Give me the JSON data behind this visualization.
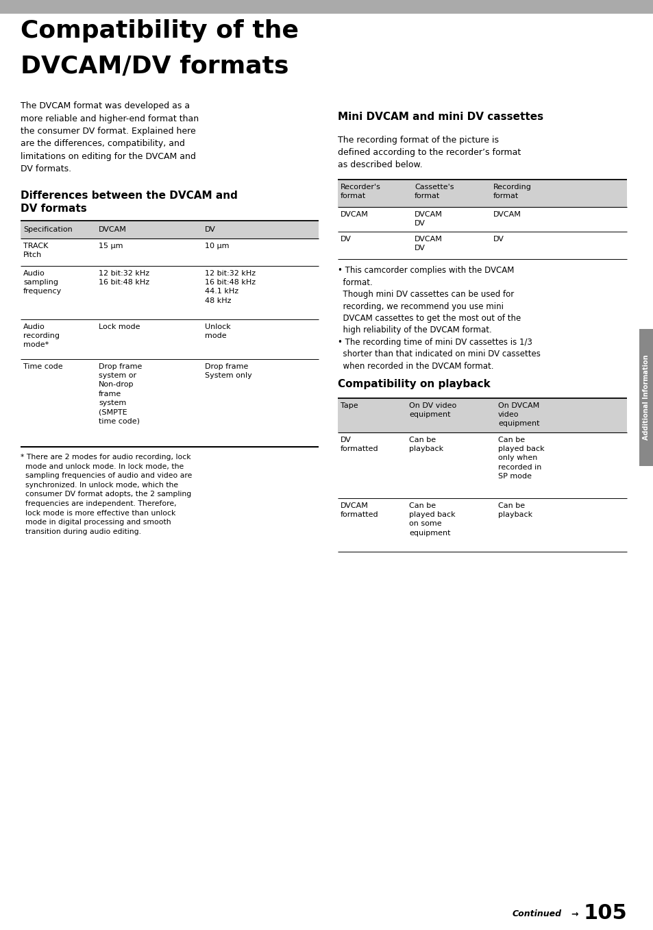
{
  "page_bg": "#ffffff",
  "header_bar_color": "#aaaaaa",
  "title_line1": "Compatibility of the",
  "title_line2": "DVCAM/DV formats",
  "intro_text": "The DVCAM format was developed as a\nmore reliable and higher-end format than\nthe consumer DV format. Explained here\nare the differences, compatibility, and\nlimitations on editing for the DVCAM and\nDV formats.",
  "section1_title": "Differences between the DVCAM and\nDV formats",
  "table1_header_bg": "#d0d0d0",
  "table1_cols": [
    "Specification",
    "DVCAM",
    "DV"
  ],
  "table1_rows": [
    [
      "TRACK\nPitch",
      "15 μm",
      "10 μm"
    ],
    [
      "Audio\nsampling\nfrequency",
      "12 bit:32 kHz\n16 bit:48 kHz",
      "12 bit:32 kHz\n16 bit:48 kHz\n44.1 kHz\n48 kHz"
    ],
    [
      "Audio\nrecording\nmode*",
      "Lock mode",
      "Unlock\nmode"
    ],
    [
      "Time code",
      "Drop frame\nsystem or\nNon-drop\nframe\nsystem\n(SMPTE\ntime code)",
      "Drop frame\nSystem only"
    ]
  ],
  "footnote_text": "* There are 2 modes for audio recording, lock\n  mode and unlock mode. In lock mode, the\n  sampling frequencies of audio and video are\n  synchronized. In unlock mode, which the\n  consumer DV format adopts, the 2 sampling\n  frequencies are independent. Therefore,\n  lock mode is more effective than unlock\n  mode in digital processing and smooth\n  transition during audio editing.",
  "section2_title": "Mini DVCAM and mini DV cassettes",
  "section2_intro": "The recording format of the picture is\ndefined according to the recorder’s format\nas described below.",
  "table2_header_bg": "#d0d0d0",
  "table2_cols": [
    "Recorder's\nformat",
    "Cassette's\nformat",
    "Recording\nformat"
  ],
  "table2_rows": [
    [
      "DVCAM",
      "DVCAM\nDV",
      "DVCAM"
    ],
    [
      "DV",
      "DVCAM\nDV",
      "DV"
    ]
  ],
  "bullet1_text": "• This camcorder complies with the DVCAM\n  format.\n  Though mini DV cassettes can be used for\n  recording, we recommend you use mini\n  DVCAM cassettes to get the most out of the\n  high reliability of the DVCAM format.",
  "bullet2_text": "• The recording time of mini DV cassettes is 1/3\n  shorter than that indicated on mini DV cassettes\n  when recorded in the DVCAM format.",
  "section3_title": "Compatibility on playback",
  "table3_header_bg": "#d0d0d0",
  "table3_cols": [
    "Tape",
    "On DV video\nequipment",
    "On DVCAM\nvideo\nequipment"
  ],
  "table3_rows": [
    [
      "DV\nformatted",
      "Can be\nplayback",
      "Can be\nplayed back\nonly when\nrecorded in\nSP mode"
    ],
    [
      "DVCAM\nformatted",
      "Can be\nplayed back\non some\nequipment",
      "Can be\nplayback"
    ]
  ],
  "right_tab_text": "Additional Information",
  "right_tab_color": "#888888",
  "continued_text": "Continued →",
  "page_number": "105"
}
